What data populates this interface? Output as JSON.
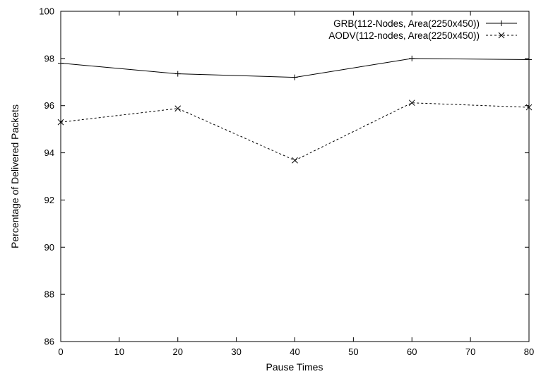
{
  "chart_data": {
    "type": "line",
    "title": "",
    "xlabel": "Pause Times",
    "ylabel": "Percentage of Delivered Packets",
    "xlim": [
      0,
      80
    ],
    "ylim": [
      86,
      100
    ],
    "xticks": [
      0,
      10,
      20,
      30,
      40,
      50,
      60,
      70,
      80
    ],
    "yticks": [
      86,
      88,
      90,
      92,
      94,
      96,
      98,
      100
    ],
    "grid": false,
    "legend_position": "top-right",
    "x": [
      0,
      20,
      40,
      60,
      80
    ],
    "series": [
      {
        "name": "GRB(112-Nodes, Area(2250x450))",
        "values": [
          97.8,
          97.35,
          97.2,
          98.0,
          97.95
        ],
        "line_style": "solid",
        "marker": "plus",
        "color": "#000000"
      },
      {
        "name": "AODV(112-nodes, Area(2250x450))",
        "values": [
          95.3,
          95.88,
          93.68,
          96.12,
          95.93
        ],
        "line_style": "dashed",
        "marker": "x",
        "color": "#000000"
      }
    ]
  }
}
